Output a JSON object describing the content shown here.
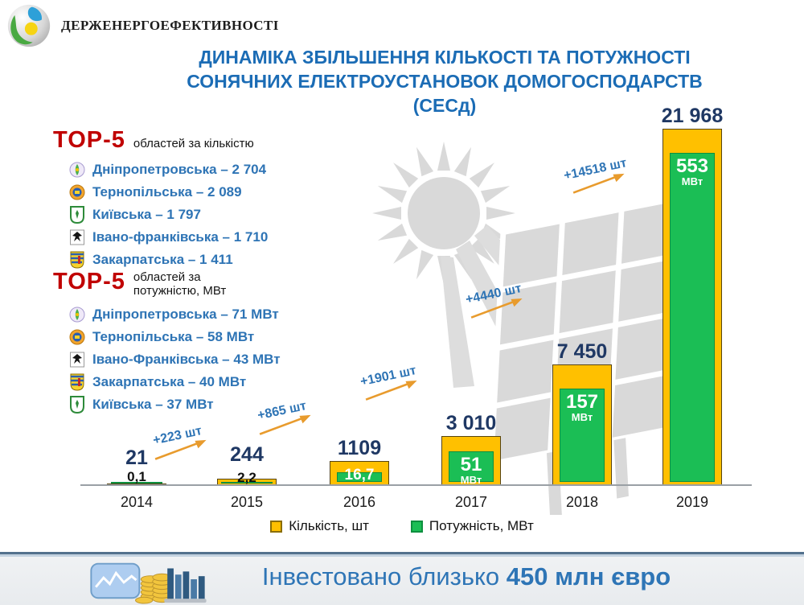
{
  "logo": {
    "org_name": "Держенергоефективності"
  },
  "title": {
    "line1": "ДИНАМІКА ЗБІЛЬШЕННЯ КІЛЬКОСТІ ТА ПОТУЖНОСТІ",
    "line2": "СОНЯЧНИХ ЕЛЕКТРОУСТАНОВОК ДОМОГОСПОДАРСТВ",
    "line3": "(СЕСд)"
  },
  "top5_by_count": {
    "label": "TOP-5",
    "subtitle": "областей за кількістю",
    "items": [
      {
        "region": "Дніпропетровська",
        "value": "2 704",
        "icon": "dnipropetrovska-coat-icon"
      },
      {
        "region": "Тернопільська",
        "value": "2 089",
        "icon": "ternopilska-coat-icon"
      },
      {
        "region": "Київська",
        "value": "1 797",
        "icon": "kyivska-coat-icon"
      },
      {
        "region": "Івано-франківська",
        "value": "1 710",
        "icon": "ivano-frankivska-coat-icon"
      },
      {
        "region": "Закарпатська",
        "value": "1 411",
        "icon": "zakarpatska-coat-icon"
      }
    ]
  },
  "top5_by_power": {
    "label": "TOP-5",
    "subtitle": "областей за потужністю, МВт",
    "items": [
      {
        "region": "Дніпропетровська",
        "value": "71 МВт",
        "icon": "dnipropetrovska-coat-icon"
      },
      {
        "region": "Тернопільська",
        "value": "58 МВт",
        "icon": "ternopilska-coat-icon"
      },
      {
        "region": "Івано-Франківська",
        "value": "43 МВт",
        "icon": "ivano-frankivska-coat-icon"
      },
      {
        "region": "Закарпатська",
        "value": "40 МВт",
        "icon": "zakarpatska-coat-icon"
      },
      {
        "region": "Київська",
        "value": "37 МВт",
        "icon": "kyivska-coat-icon"
      }
    ]
  },
  "chart_data": {
    "type": "bar",
    "title": "ДИНАМІКА ЗБІЛЬШЕННЯ КІЛЬКОСТІ ТА ПОТУЖНОСТІ СОНЯЧНИХ ЕЛЕКТРОУСТАНОВОК ДОМОГОСПОДАРСТВ (СЕСд)",
    "categories": [
      "2014",
      "2015",
      "2016",
      "2017",
      "2018",
      "2019"
    ],
    "series": [
      {
        "name": "Кількість, шт",
        "color": "#FFC000",
        "values": [
          21,
          244,
          1109,
          3010,
          7450,
          21968
        ],
        "labels": [
          "21",
          "244",
          "1109",
          "3 010",
          "7 450",
          "21 968"
        ]
      },
      {
        "name": "Потужність, МВт",
        "color": "#1BBE55",
        "values": [
          0.1,
          2.2,
          16.7,
          51,
          157,
          553
        ],
        "labels": [
          "0,1",
          "2,2",
          "16,7",
          "51",
          "157",
          "553"
        ]
      }
    ],
    "inner_unit": "МВт",
    "growth_annotations": [
      "+223 шт",
      "+865 шт",
      "+1901 шт",
      "+4440 шт",
      "+14518 шт"
    ],
    "xlabel": "",
    "ylabel": "",
    "ylim": [
      0,
      21968
    ],
    "grid": false,
    "legend_position": "bottom"
  },
  "footer": {
    "prefix": "Інвестовано близько ",
    "amount": "450 млн євро"
  },
  "colors": {
    "title": "#1B6CB5",
    "value_label": "#1F3864",
    "accent_red": "#C00000",
    "list_text": "#2E74B5",
    "annotation_text": "#2E74B5",
    "arrow": "#E89B2D",
    "bar_count": "#FFC000",
    "bar_power": "#1BBE55",
    "footer_text": "#2E75B6",
    "watermark": "#d9d9d9"
  }
}
